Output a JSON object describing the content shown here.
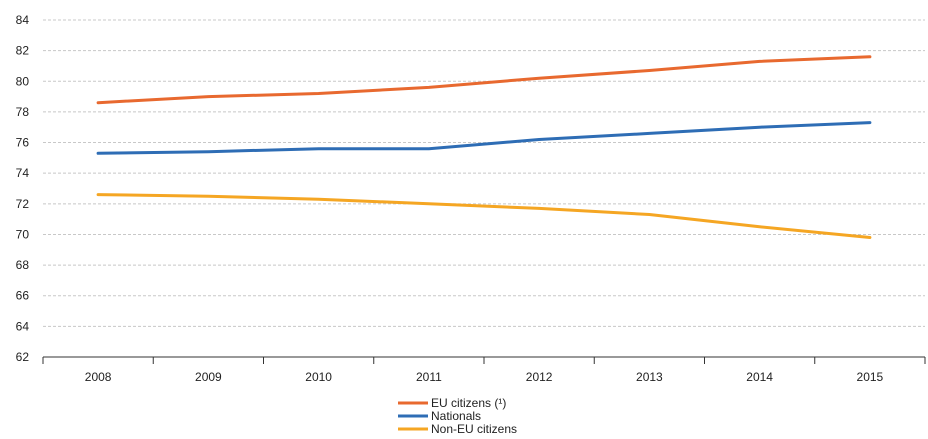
{
  "chart_data": {
    "type": "line",
    "title": "",
    "xlabel": "",
    "ylabel": "",
    "categories": [
      "2008",
      "2009",
      "2010",
      "2011",
      "2012",
      "2013",
      "2014",
      "2015"
    ],
    "ylim": [
      62,
      84
    ],
    "yticks": [
      62,
      64,
      66,
      68,
      70,
      72,
      74,
      76,
      78,
      80,
      82,
      84
    ],
    "grid": "horizontal dashed",
    "legend_position": "bottom-center",
    "series": [
      {
        "name": "EU citizens (¹)",
        "color": "#E8692F",
        "values": [
          78.6,
          79.0,
          79.2,
          79.6,
          80.2,
          80.7,
          81.3,
          81.6
        ]
      },
      {
        "name": "Nationals",
        "color": "#2E6DB5",
        "values": [
          75.3,
          75.4,
          75.6,
          75.6,
          76.2,
          76.6,
          77.0,
          77.3
        ]
      },
      {
        "name": "Non-EU citizens",
        "color": "#F5A623",
        "values": [
          72.6,
          72.5,
          72.3,
          72.0,
          71.7,
          71.3,
          70.5,
          69.8
        ]
      }
    ]
  }
}
